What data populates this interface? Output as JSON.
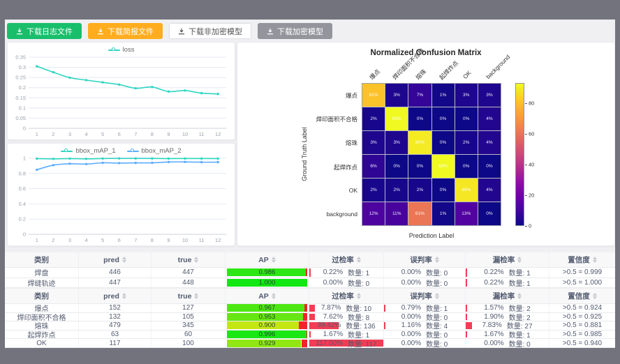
{
  "toolbar": {
    "buttons": [
      {
        "label": "下载日志文件",
        "style": "green",
        "name": "download-log-button"
      },
      {
        "label": "下载简报文件",
        "style": "orange",
        "name": "download-report-button"
      },
      {
        "label": "下载非加密模型",
        "style": "white",
        "name": "download-plain-model-button"
      },
      {
        "label": "下载加密模型",
        "style": "gray",
        "name": "download-encrypted-model-button"
      }
    ]
  },
  "colors": {
    "teal": "#2ed5c2",
    "blue": "#5cadff",
    "grid": "#e4e8f1",
    "axis_text": "#9aa0ab",
    "red_bar": "#f23d54",
    "ap_remainder_red": "#f5222d"
  },
  "chart_data": [
    {
      "type": "line",
      "title": "loss",
      "x": [
        1,
        2,
        3,
        4,
        5,
        6,
        7,
        8,
        9,
        10,
        11,
        12
      ],
      "series": [
        {
          "name": "loss",
          "color_key": "teal",
          "values": [
            0.305,
            0.276,
            0.249,
            0.237,
            0.226,
            0.215,
            0.197,
            0.203,
            0.181,
            0.186,
            0.173,
            0.169
          ]
        }
      ],
      "ylim": [
        0,
        0.35
      ],
      "ystep": 0.05,
      "legend_position": "top",
      "grid": true
    },
    {
      "type": "line",
      "title": "bbox_mAP",
      "x": [
        1,
        2,
        3,
        4,
        5,
        6,
        7,
        8,
        9,
        10,
        11,
        12
      ],
      "series": [
        {
          "name": "bbox_mAP_1",
          "color_key": "teal",
          "values": [
            0.995,
            0.993,
            0.996,
            0.993,
            0.997,
            0.998,
            0.998,
            0.998,
            0.996,
            0.997,
            0.997,
            0.996
          ]
        },
        {
          "name": "bbox_mAP_2",
          "color_key": "blue",
          "values": [
            0.85,
            0.91,
            0.928,
            0.924,
            0.94,
            0.937,
            0.939,
            0.94,
            0.951,
            0.952,
            0.949,
            0.95
          ]
        }
      ],
      "ylim": [
        0,
        1
      ],
      "ystep": 0.2,
      "legend_position": "top",
      "grid": true
    },
    {
      "type": "heatmap",
      "title": "Normalized Confusion Matrix",
      "xlabel": "Prediction Label",
      "ylabel": "Ground Truth Label",
      "labels": [
        "爆点",
        "焊印面积不合格",
        "熔珠",
        "起焊炸点",
        "OK",
        "background"
      ],
      "values": [
        [
          81,
          3,
          7,
          1,
          3,
          3
        ],
        [
          2,
          93,
          0,
          0,
          0,
          4
        ],
        [
          3,
          3,
          90,
          0,
          2,
          4
        ],
        [
          6,
          0,
          0,
          93,
          0,
          0
        ],
        [
          2,
          2,
          2,
          0,
          89,
          4
        ],
        [
          12,
          11,
          61,
          1,
          13,
          0
        ]
      ],
      "vmax": 93,
      "colormap": "plasma",
      "colorbar_ticks": [
        0,
        20,
        40,
        60,
        80
      ]
    }
  ],
  "confusion_matrix": {
    "title": "Normalized Confusion Matrix",
    "xlabel": "Prediction Label",
    "ylabel": "Ground Truth Label"
  },
  "tables": [
    {
      "columns": [
        {
          "label": "类别",
          "sortable": false
        },
        {
          "label": "pred",
          "sortable": true
        },
        {
          "label": "true",
          "sortable": true
        },
        {
          "label": "AP",
          "sortable": true
        },
        {
          "label": "过检率",
          "sortable": true
        },
        {
          "label": "误判率",
          "sortable": true
        },
        {
          "label": "漏检率",
          "sortable": true
        },
        {
          "label": "置信度",
          "sortable": true
        }
      ],
      "rows": [
        {
          "class": "焊盘",
          "pred": "446",
          "true": "447",
          "ap": "0.986",
          "ap_val": 0.986,
          "over": {
            "pct": "0.22%",
            "count": "数量: 1",
            "val": 0.22
          },
          "mis": {
            "pct": "0.00%",
            "count": "数量: 0",
            "val": 0
          },
          "miss": {
            "pct": "0.22%",
            "count": "数量: 1",
            "val": 0.22
          },
          "conf": ">0.5 = 0.999"
        },
        {
          "class": "焊缝轨迹",
          "pred": "447",
          "true": "448",
          "ap": "1.000",
          "ap_val": 1.0,
          "over": {
            "pct": "0.00%",
            "count": "数量: 0",
            "val": 0
          },
          "mis": {
            "pct": "0.00%",
            "count": "数量: 0",
            "val": 0
          },
          "miss": {
            "pct": "0.22%",
            "count": "数量: 1",
            "val": 0.22
          },
          "conf": ">0.5 = 1.000"
        }
      ]
    },
    {
      "columns": [
        {
          "label": "类别",
          "sortable": false
        },
        {
          "label": "pred",
          "sortable": true
        },
        {
          "label": "true",
          "sortable": true
        },
        {
          "label": "AP",
          "sortable": true
        },
        {
          "label": "过检率",
          "sortable": true
        },
        {
          "label": "误判率",
          "sortable": true
        },
        {
          "label": "漏检率",
          "sortable": true
        },
        {
          "label": "置信度",
          "sortable": true
        }
      ],
      "rows": [
        {
          "class": "爆点",
          "pred": "152",
          "true": "127",
          "ap": "0.967",
          "ap_val": 0.967,
          "over": {
            "pct": "7.87%",
            "count": "数量: 10",
            "val": 7.87
          },
          "mis": {
            "pct": "0.79%",
            "count": "数量: 1",
            "val": 0.79
          },
          "miss": {
            "pct": "1.57%",
            "count": "数量: 2",
            "val": 1.57
          },
          "conf": ">0.5 = 0.924"
        },
        {
          "class": "焊印面积不合格",
          "pred": "132",
          "true": "105",
          "ap": "0.953",
          "ap_val": 0.953,
          "over": {
            "pct": "7.62%",
            "count": "数量: 8",
            "val": 7.62
          },
          "mis": {
            "pct": "0.00%",
            "count": "数量: 0",
            "val": 0
          },
          "miss": {
            "pct": "1.90%",
            "count": "数量: 2",
            "val": 1.9
          },
          "conf": ">0.5 = 0.925"
        },
        {
          "class": "熔珠",
          "pred": "479",
          "true": "345",
          "ap": "0.900",
          "ap_val": 0.9,
          "over": {
            "pct": "39.42%",
            "count": "数量: 136",
            "val": 39.42
          },
          "mis": {
            "pct": "1.16%",
            "count": "数量: 4",
            "val": 1.16
          },
          "miss": {
            "pct": "7.83%",
            "count": "数量: 27",
            "val": 7.83
          },
          "conf": ">0.5 = 0.881"
        },
        {
          "class": "起焊炸点",
          "pred": "63",
          "true": "60",
          "ap": "0.996",
          "ap_val": 0.996,
          "over": {
            "pct": "1.67%",
            "count": "数量: 1",
            "val": 1.67
          },
          "mis": {
            "pct": "0.00%",
            "count": "数量: 0",
            "val": 0
          },
          "miss": {
            "pct": "1.67%",
            "count": "数量: 1",
            "val": 1.67
          },
          "conf": ">0.5 = 0.985"
        },
        {
          "class": "OK",
          "pred": "117",
          "true": "100",
          "ap": "0.929",
          "ap_val": 0.929,
          "over": {
            "pct": "117.00%",
            "count": "数量: 117",
            "val": 117
          },
          "mis": {
            "pct": "0.00%",
            "count": "数量: 0",
            "val": 0
          },
          "miss": {
            "pct": "0.00%",
            "count": "数量: 0",
            "val": 0
          },
          "conf": ">0.5 = 0.940"
        }
      ]
    }
  ]
}
